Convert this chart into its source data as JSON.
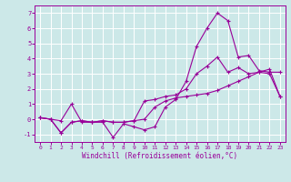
{
  "xlabel": "Windchill (Refroidissement éolien,°C)",
  "bg_color": "#cce8e8",
  "grid_color": "#ffffff",
  "line_color": "#990099",
  "xlim": [
    -0.5,
    23.5
  ],
  "ylim": [
    -1.5,
    7.5
  ],
  "xticks": [
    0,
    1,
    2,
    3,
    4,
    5,
    6,
    7,
    8,
    9,
    10,
    11,
    12,
    13,
    14,
    15,
    16,
    17,
    18,
    19,
    20,
    21,
    22,
    23
  ],
  "yticks": [
    -1,
    0,
    1,
    2,
    3,
    4,
    5,
    6,
    7
  ],
  "line1_x": [
    0,
    1,
    2,
    3,
    4,
    5,
    6,
    7,
    8,
    9,
    10,
    11,
    12,
    13,
    14,
    15,
    16,
    17,
    18,
    19,
    20,
    21,
    22,
    23
  ],
  "line1_y": [
    0.1,
    0.0,
    -0.1,
    1.0,
    -0.2,
    -0.2,
    -0.2,
    -1.2,
    -0.3,
    -0.5,
    -0.7,
    -0.5,
    0.8,
    1.3,
    2.5,
    4.8,
    6.0,
    7.0,
    6.5,
    4.1,
    4.2,
    3.2,
    3.1,
    3.1
  ],
  "line2_x": [
    0,
    1,
    2,
    3,
    4,
    5,
    6,
    7,
    8,
    9,
    10,
    11,
    12,
    13,
    14,
    15,
    16,
    17,
    18,
    19,
    20,
    21,
    22,
    23
  ],
  "line2_y": [
    0.1,
    0.0,
    -0.9,
    -0.2,
    -0.1,
    -0.2,
    -0.1,
    -0.2,
    -0.2,
    -0.1,
    0.0,
    0.8,
    1.2,
    1.4,
    1.5,
    1.6,
    1.7,
    1.9,
    2.2,
    2.5,
    2.8,
    3.1,
    3.3,
    1.5
  ],
  "line3_x": [
    0,
    1,
    2,
    3,
    4,
    5,
    6,
    7,
    8,
    9,
    10,
    11,
    12,
    13,
    14,
    15,
    16,
    17,
    18,
    19,
    20,
    21,
    22,
    23
  ],
  "line3_y": [
    0.1,
    0.0,
    -0.9,
    -0.2,
    -0.1,
    -0.2,
    -0.1,
    -0.2,
    -0.2,
    -0.1,
    1.2,
    1.3,
    1.5,
    1.6,
    2.0,
    3.0,
    3.5,
    4.1,
    3.1,
    3.4,
    3.0,
    3.1,
    3.0,
    1.5
  ],
  "figsize": [
    3.2,
    2.0
  ],
  "dpi": 100
}
